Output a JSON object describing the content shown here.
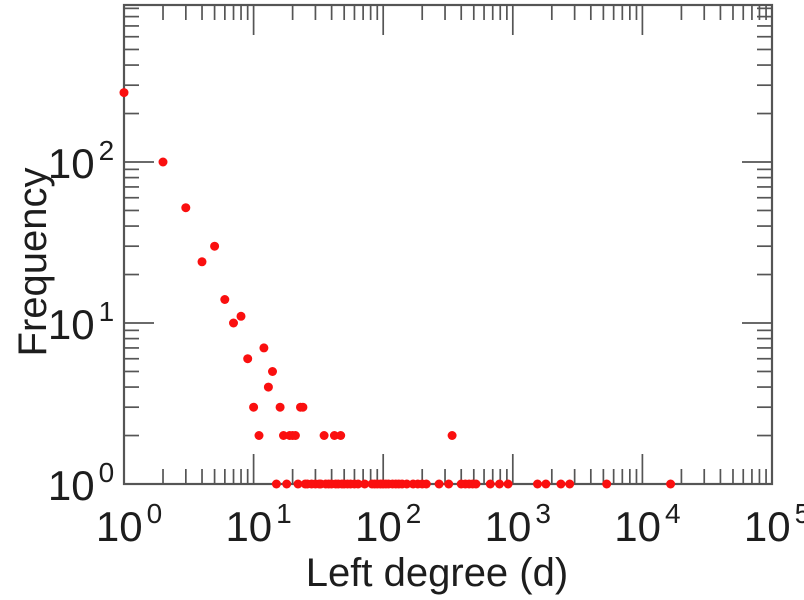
{
  "figure": {
    "background": "#ffffff"
  },
  "chart_data": {
    "type": "scatter",
    "title": "",
    "xlabel": "Left degree (d)",
    "ylabel": "Frequency",
    "x_scale": "log",
    "y_scale": "log",
    "xlim": [
      1,
      100000
    ],
    "ylim": [
      1,
      950
    ],
    "grid": false,
    "legend": null,
    "tick_base": "10",
    "x_tick_exponents": [
      0,
      1,
      2,
      3,
      4,
      5
    ],
    "y_tick_exponents": [
      0,
      1,
      2
    ],
    "marker": {
      "shape": "circle",
      "radius_px": 4.5,
      "color": "#fa0f0f"
    },
    "axis_color": "#555555",
    "text_color": "#1d1d1d",
    "points": [
      [
        1,
        270
      ],
      [
        2,
        100
      ],
      [
        3,
        52
      ],
      [
        4,
        24
      ],
      [
        5,
        30
      ],
      [
        6,
        14
      ],
      [
        7,
        10
      ],
      [
        8,
        11
      ],
      [
        9,
        6
      ],
      [
        10,
        3
      ],
      [
        11,
        2
      ],
      [
        12,
        7
      ],
      [
        13,
        4
      ],
      [
        14,
        5
      ],
      [
        15,
        1
      ],
      [
        16,
        3
      ],
      [
        17,
        2
      ],
      [
        18,
        1
      ],
      [
        19,
        2
      ],
      [
        20,
        2
      ],
      [
        21,
        2
      ],
      [
        22,
        1
      ],
      [
        23,
        3
      ],
      [
        24,
        3
      ],
      [
        25,
        1
      ],
      [
        26,
        1
      ],
      [
        28,
        1
      ],
      [
        30,
        1
      ],
      [
        32,
        1
      ],
      [
        33,
        1
      ],
      [
        35,
        2
      ],
      [
        36,
        1
      ],
      [
        38,
        1
      ],
      [
        40,
        1
      ],
      [
        42,
        2
      ],
      [
        43,
        1
      ],
      [
        45,
        1
      ],
      [
        47,
        2
      ],
      [
        48,
        1
      ],
      [
        50,
        1
      ],
      [
        53,
        1
      ],
      [
        56,
        1
      ],
      [
        60,
        1
      ],
      [
        64,
        1
      ],
      [
        72,
        1
      ],
      [
        82,
        1
      ],
      [
        86,
        1
      ],
      [
        90,
        1
      ],
      [
        95,
        1
      ],
      [
        100,
        1
      ],
      [
        105,
        1
      ],
      [
        110,
        1
      ],
      [
        118,
        1
      ],
      [
        125,
        1
      ],
      [
        132,
        1
      ],
      [
        140,
        1
      ],
      [
        152,
        1
      ],
      [
        170,
        1
      ],
      [
        185,
        1
      ],
      [
        200,
        1
      ],
      [
        215,
        1
      ],
      [
        270,
        1
      ],
      [
        320,
        1
      ],
      [
        340,
        2
      ],
      [
        400,
        1
      ],
      [
        430,
        1
      ],
      [
        460,
        1
      ],
      [
        490,
        1
      ],
      [
        520,
        1
      ],
      [
        670,
        1
      ],
      [
        790,
        1
      ],
      [
        920,
        1
      ],
      [
        1550,
        1
      ],
      [
        1800,
        1
      ],
      [
        2350,
        1
      ],
      [
        2750,
        1
      ],
      [
        5300,
        1
      ],
      [
        16500,
        1
      ]
    ]
  }
}
